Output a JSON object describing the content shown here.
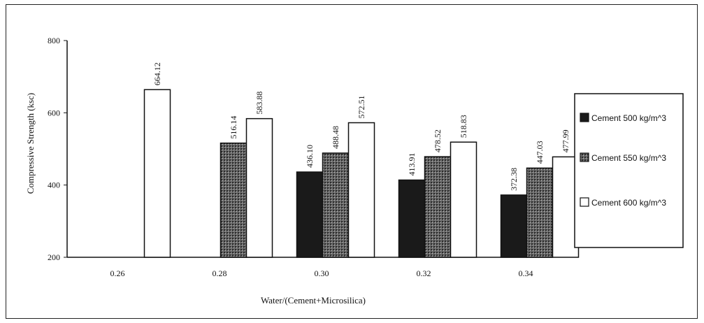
{
  "chart_data": {
    "type": "bar",
    "xlabel": "Water/(Cement+Microsilica)",
    "ylabel": "Compressive Strength (ksc)",
    "ylim": [
      200,
      800
    ],
    "yticks": [
      200,
      400,
      600,
      800
    ],
    "categories": [
      "0.26",
      "0.28",
      "0.30",
      "0.32",
      "0.34"
    ],
    "series": [
      {
        "name": "Cement 500 kg/m^3",
        "color": "#1a1a1a",
        "values": [
          null,
          null,
          436.1,
          413.91,
          372.38
        ],
        "labels": [
          "",
          "",
          "436.10",
          "413.91",
          "372.38"
        ]
      },
      {
        "name": "Cement 550 kg/m^3",
        "color": "#555555",
        "values": [
          null,
          516.14,
          488.48,
          478.52,
          447.03
        ],
        "labels": [
          "",
          "516.14",
          "488.48",
          "478.52",
          "447.03"
        ]
      },
      {
        "name": "Cement 600 kg/m^3",
        "color": "#ffffff",
        "values": [
          664.12,
          583.88,
          572.51,
          518.83,
          477.99
        ],
        "labels": [
          "664.12",
          "583.88",
          "572.51",
          "518.83",
          "477.99"
        ]
      }
    ],
    "legend_position": "right",
    "grid": false
  }
}
